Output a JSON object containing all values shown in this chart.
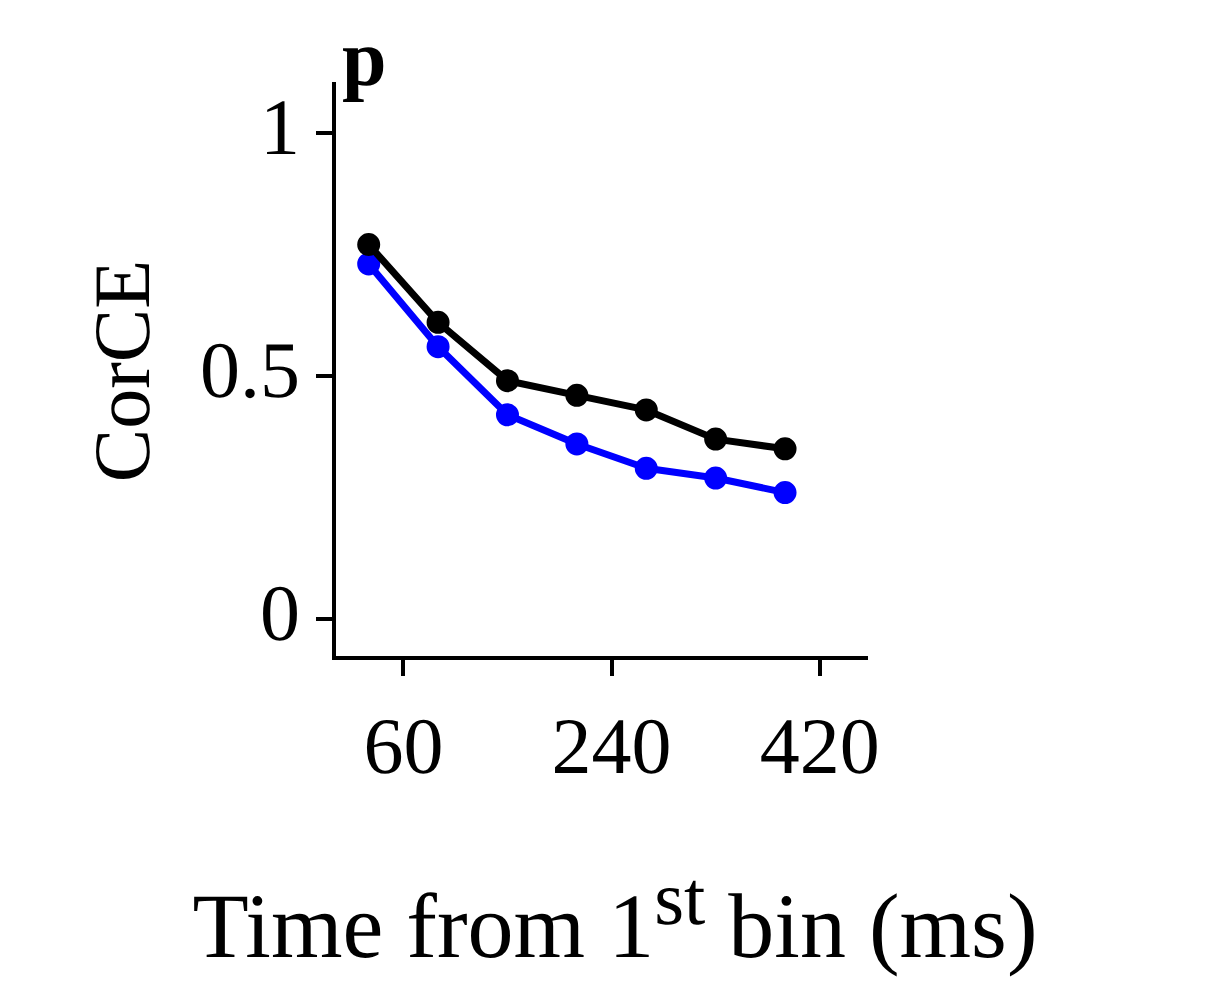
{
  "chart_data": {
    "type": "line",
    "title": "p",
    "xlabel": "Time from 1$^{st}$ bin (ms)",
    "ylabel": "CorCE",
    "x": [
      30,
      90,
      150,
      210,
      270,
      330,
      390
    ],
    "series": [
      {
        "color": "#000000",
        "values": [
          0.77,
          0.61,
          0.49,
          0.46,
          0.43,
          0.37,
          0.35
        ]
      },
      {
        "color": "#0000ff",
        "values": [
          0.73,
          0.56,
          0.42,
          0.36,
          0.31,
          0.29,
          0.26
        ]
      }
    ],
    "xlim": [
      0,
      460
    ],
    "xticks": [
      60,
      240,
      420
    ],
    "ylim": [
      -0.08,
      1.1
    ],
    "yticks": [
      0,
      0.5,
      1
    ],
    "grid": false,
    "legend": false,
    "marker": "circle",
    "line_style": "solid"
  }
}
